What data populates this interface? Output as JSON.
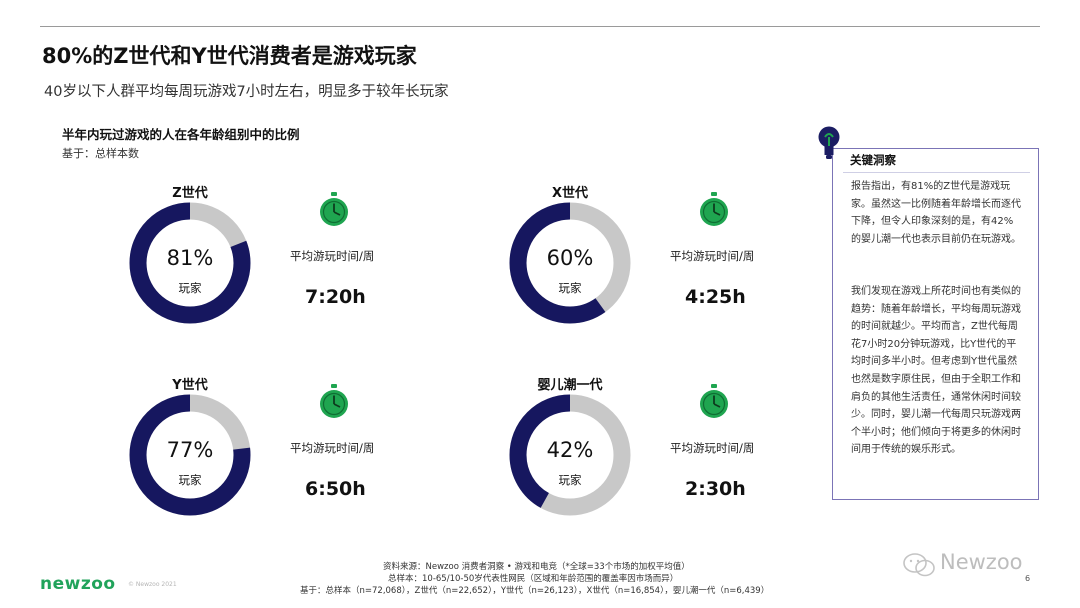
{
  "header": {
    "title": "80%的Z世代和Y世代消费者是游戏玩家",
    "subtitle": "40岁以下人群平均每周玩游戏7小时左右，明显多于较年长玩家"
  },
  "chart_header": {
    "title": "半年内玩过游戏的人在各年龄组别中的比例",
    "base_note": "基于：总样本数"
  },
  "colors": {
    "filled": "#16175f",
    "remaining": "#c8c8c8",
    "timer": "#1fa550",
    "accent_border": "#7b74b6"
  },
  "chart_data": {
    "type": "pie",
    "variant": "donut",
    "title": "半年内玩过游戏的人在各年龄组别中的比例",
    "unit": "%",
    "groups": [
      {
        "name": "Z世代",
        "value": 81,
        "label": "81%",
        "sub_label": "玩家",
        "avg_time_label": "平均游玩时间/周",
        "avg_time": "7:20h"
      },
      {
        "name": "X世代",
        "value": 60,
        "label": "60%",
        "sub_label": "玩家",
        "avg_time_label": "平均游玩时间/周",
        "avg_time": "4:25h"
      },
      {
        "name": "Y世代",
        "value": 77,
        "label": "77%",
        "sub_label": "玩家",
        "avg_time_label": "平均游玩时间/周",
        "avg_time": "6:50h"
      },
      {
        "name": "婴儿潮一代",
        "value": 42,
        "label": "42%",
        "sub_label": "玩家",
        "avg_time_label": "平均游玩时间/周",
        "avg_time": "2:30h"
      }
    ]
  },
  "insight": {
    "heading": "关键洞察",
    "paragraphs": [
      "报告指出，有81%的Z世代是游戏玩家。虽然这一比例随着年龄增长而逐代下降，但令人印象深刻的是，有42%的婴儿潮一代也表示目前仍在玩游戏。",
      "我们发现在游戏上所花时间也有类似的趋势：随着年龄增长，平均每周玩游戏的时间就越少。平均而言，Z世代每周花7小时20分钟玩游戏，比Y世代的平均时间多半小时。但考虑到Y世代虽然也然是数字原住民，但由于全职工作和肩负的其他生活责任，通常休闲时间较少。同时，婴儿潮一代每周只玩游戏两个半小时；他们倾向于将更多的休闲时间用于传统的娱乐形式。"
    ]
  },
  "footer": {
    "logo": "newzoo",
    "copyright": "© Newzoo 2021",
    "source": "资料来源：Newzoo 消费者洞察 • 游戏和电竞（*全球=33个市场的加权平均值）",
    "sample": "总样本：10-65/10-50岁代表性网民（区域和年龄范围的覆盖率因市场而异）",
    "base": "基于：总样本（n=72,068），Z世代（n=22,652），Y世代（n=26,123），X世代（n=16,854），婴儿潮一代（n=6,439）",
    "watermark": "Newzoo",
    "page_number": "6"
  }
}
